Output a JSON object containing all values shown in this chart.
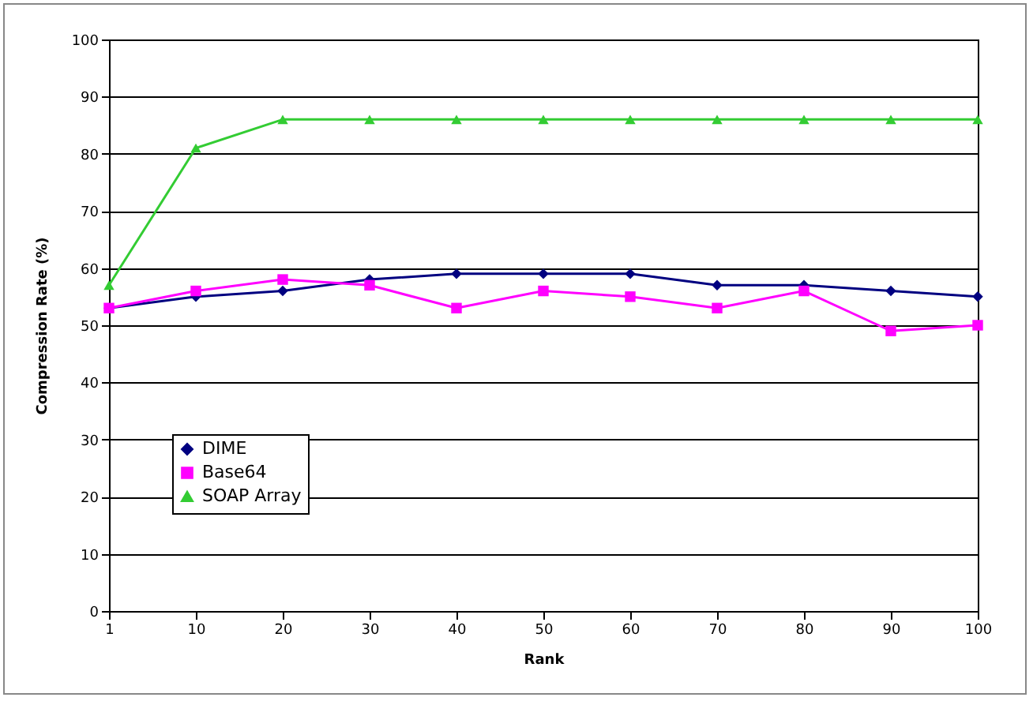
{
  "chart_data": {
    "type": "line",
    "xlabel": "Rank",
    "ylabel": "Compression Rate (%)",
    "categories": [
      "1",
      "10",
      "20",
      "30",
      "40",
      "50",
      "60",
      "70",
      "80",
      "90",
      "100"
    ],
    "series": [
      {
        "name": "DIME",
        "color": "#000080",
        "marker": "diamond",
        "values": [
          53,
          55,
          56,
          58,
          59,
          59,
          59,
          57,
          57,
          56,
          55
        ]
      },
      {
        "name": "Base64",
        "color": "#ff00ff",
        "marker": "square",
        "values": [
          53,
          56,
          58,
          57,
          53,
          56,
          55,
          53,
          56,
          49,
          50
        ]
      },
      {
        "name": "SOAP Array",
        "color": "#33cc33",
        "marker": "triangle",
        "values": [
          57,
          81,
          86,
          86,
          86,
          86,
          86,
          86,
          86,
          86,
          86
        ]
      }
    ],
    "ylim": [
      0,
      100
    ],
    "yticks": [
      0,
      10,
      20,
      30,
      40,
      50,
      60,
      70,
      80,
      90,
      100
    ],
    "grid": "y",
    "legend": "bottom left"
  }
}
